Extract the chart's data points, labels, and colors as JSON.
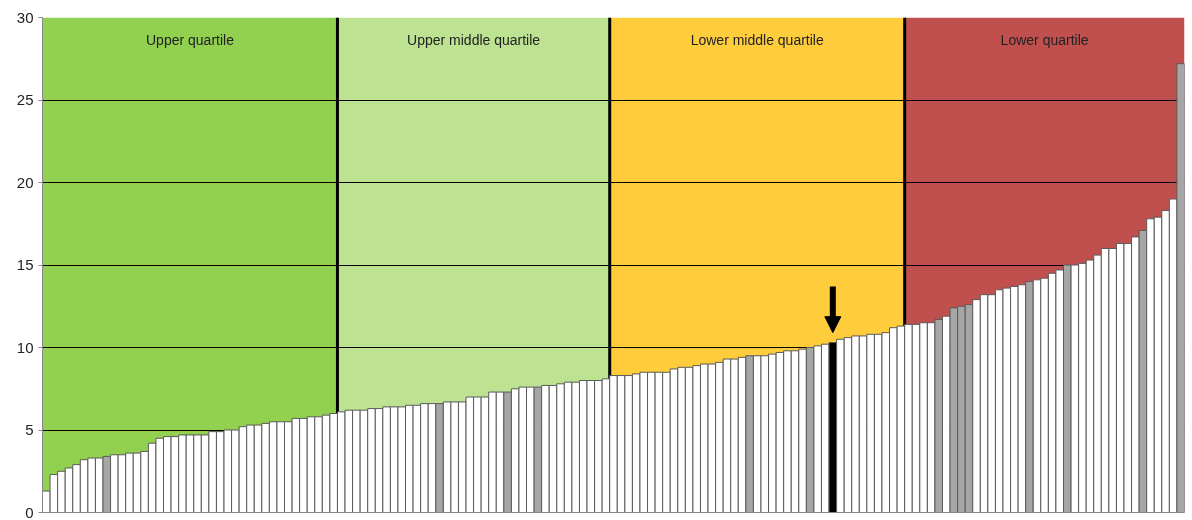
{
  "chart_data": {
    "type": "bar",
    "categories": [
      null,
      null,
      null,
      null,
      null,
      null,
      null,
      null,
      null,
      null,
      null,
      null,
      null,
      null,
      null,
      null,
      null,
      null,
      null,
      null,
      null,
      null,
      null,
      null,
      null,
      null,
      null,
      null,
      null,
      null,
      null,
      null,
      null,
      null,
      null,
      null,
      null,
      null,
      null,
      null,
      null,
      null,
      null,
      null,
      null,
      null,
      null,
      null,
      null,
      null,
      null,
      null,
      null,
      null,
      null,
      null,
      null,
      null,
      null,
      null,
      null,
      null,
      null,
      null,
      null,
      null,
      null,
      null,
      null,
      null,
      null,
      null,
      null,
      null,
      null,
      null,
      null,
      null,
      null,
      null,
      null,
      null,
      null,
      null,
      null,
      null,
      null,
      null,
      null,
      null,
      null,
      null,
      null,
      null,
      null,
      null,
      null,
      null,
      null,
      null,
      null,
      null,
      null,
      null,
      null,
      null,
      null,
      null,
      null,
      null,
      null,
      null,
      null,
      null,
      null,
      null,
      null,
      null,
      null,
      null,
      null,
      null,
      null,
      null,
      null,
      null,
      null,
      null,
      null,
      null,
      null,
      null,
      null,
      null,
      null,
      null,
      null,
      null,
      null,
      null,
      null,
      null,
      null,
      null,
      null,
      null,
      null,
      null,
      null,
      null,
      null
    ],
    "values": [
      1.3,
      2.3,
      2.5,
      2.7,
      2.9,
      3.2,
      3.3,
      3.3,
      3.4,
      3.5,
      3.5,
      3.6,
      3.6,
      3.7,
      4.2,
      4.5,
      4.6,
      4.6,
      4.7,
      4.7,
      4.7,
      4.7,
      4.9,
      4.9,
      5.0,
      5.0,
      5.2,
      5.3,
      5.3,
      5.4,
      5.5,
      5.5,
      5.5,
      5.7,
      5.7,
      5.8,
      5.8,
      5.9,
      6.0,
      6.1,
      6.2,
      6.2,
      6.2,
      6.3,
      6.3,
      6.4,
      6.4,
      6.4,
      6.5,
      6.5,
      6.6,
      6.6,
      6.6,
      6.7,
      6.7,
      6.7,
      7.0,
      7.0,
      7.0,
      7.3,
      7.3,
      7.3,
      7.5,
      7.6,
      7.6,
      7.6,
      7.7,
      7.7,
      7.8,
      7.9,
      7.9,
      8.0,
      8.0,
      8.0,
      8.1,
      8.3,
      8.3,
      8.3,
      8.4,
      8.5,
      8.5,
      8.5,
      8.5,
      8.7,
      8.8,
      8.8,
      8.9,
      9.0,
      9.0,
      9.1,
      9.3,
      9.3,
      9.4,
      9.5,
      9.5,
      9.5,
      9.6,
      9.7,
      9.8,
      9.8,
      9.9,
      10.0,
      10.1,
      10.2,
      10.3,
      10.5,
      10.6,
      10.7,
      10.7,
      10.8,
      10.8,
      10.9,
      11.2,
      11.3,
      11.4,
      11.4,
      11.5,
      11.5,
      11.7,
      11.9,
      12.4,
      12.5,
      12.6,
      12.9,
      13.2,
      13.2,
      13.5,
      13.6,
      13.7,
      13.8,
      14.0,
      14.1,
      14.2,
      14.5,
      14.7,
      15.0,
      15.0,
      15.1,
      15.3,
      15.6,
      16.0,
      16.0,
      16.3,
      16.3,
      16.7,
      17.1,
      17.8,
      17.9,
      18.3,
      19.0,
      27.2
    ],
    "colors": [
      "#ffffff",
      "#ffffff",
      "#ffffff",
      "#ffffff",
      "#ffffff",
      "#ffffff",
      "#ffffff",
      "#ffffff",
      "#a6a6a6",
      "#ffffff",
      "#ffffff",
      "#ffffff",
      "#ffffff",
      "#ffffff",
      "#ffffff",
      "#ffffff",
      "#ffffff",
      "#ffffff",
      "#ffffff",
      "#ffffff",
      "#ffffff",
      "#ffffff",
      "#ffffff",
      "#ffffff",
      "#ffffff",
      "#ffffff",
      "#ffffff",
      "#ffffff",
      "#ffffff",
      "#ffffff",
      "#ffffff",
      "#ffffff",
      "#ffffff",
      "#ffffff",
      "#ffffff",
      "#ffffff",
      "#ffffff",
      "#ffffff",
      "#ffffff",
      "#ffffff",
      "#ffffff",
      "#ffffff",
      "#ffffff",
      "#ffffff",
      "#ffffff",
      "#ffffff",
      "#ffffff",
      "#ffffff",
      "#ffffff",
      "#ffffff",
      "#ffffff",
      "#ffffff",
      "#a6a6a6",
      "#ffffff",
      "#ffffff",
      "#ffffff",
      "#ffffff",
      "#ffffff",
      "#ffffff",
      "#ffffff",
      "#ffffff",
      "#a6a6a6",
      "#ffffff",
      "#ffffff",
      "#ffffff",
      "#a6a6a6",
      "#ffffff",
      "#ffffff",
      "#ffffff",
      "#ffffff",
      "#ffffff",
      "#ffffff",
      "#ffffff",
      "#ffffff",
      "#ffffff",
      "#ffffff",
      "#ffffff",
      "#ffffff",
      "#ffffff",
      "#ffffff",
      "#ffffff",
      "#ffffff",
      "#ffffff",
      "#ffffff",
      "#ffffff",
      "#ffffff",
      "#ffffff",
      "#ffffff",
      "#ffffff",
      "#ffffff",
      "#ffffff",
      "#ffffff",
      "#ffffff",
      "#a6a6a6",
      "#ffffff",
      "#ffffff",
      "#ffffff",
      "#ffffff",
      "#ffffff",
      "#ffffff",
      "#ffffff",
      "#a6a6a6",
      "#ffffff",
      "#ffffff",
      "#000000",
      "#ffffff",
      "#ffffff",
      "#ffffff",
      "#ffffff",
      "#ffffff",
      "#ffffff",
      "#ffffff",
      "#ffffff",
      "#ffffff",
      "#ffffff",
      "#ffffff",
      "#ffffff",
      "#ffffff",
      "#a6a6a6",
      "#ffffff",
      "#a6a6a6",
      "#a6a6a6",
      "#a6a6a6",
      "#ffffff",
      "#ffffff",
      "#ffffff",
      "#ffffff",
      "#ffffff",
      "#ffffff",
      "#ffffff",
      "#a6a6a6",
      "#ffffff",
      "#ffffff",
      "#ffffff",
      "#ffffff",
      "#a6a6a6",
      "#ffffff",
      "#ffffff",
      "#ffffff",
      "#ffffff",
      "#ffffff",
      "#ffffff",
      "#ffffff",
      "#ffffff",
      "#ffffff",
      "#a6a6a6",
      "#ffffff",
      "#ffffff",
      "#ffffff",
      "#ffffff",
      "#a6a6a6"
    ],
    "ylim": [
      0,
      30
    ],
    "yticks": [
      0,
      5,
      10,
      15,
      20,
      25,
      30
    ],
    "grid": "y",
    "annotations": [
      "Upper quartile",
      "Upper middle quartile",
      "Lower middle quartile",
      "Lower quartile"
    ]
  }
}
